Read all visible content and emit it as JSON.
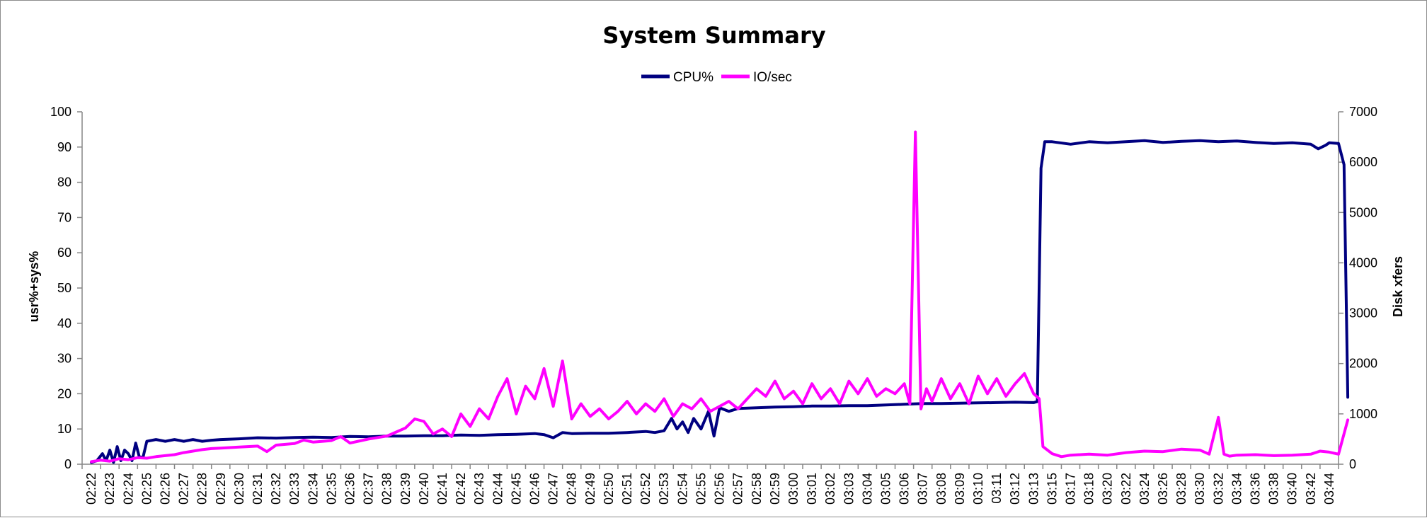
{
  "chart_data": {
    "type": "line",
    "title": "System Summary",
    "legend": {
      "placement": "top-center"
    },
    "grid": false,
    "y_left": {
      "label": "usr%+sys%",
      "range": [
        0,
        100
      ],
      "ticks": [
        "0",
        "10",
        "20",
        "30",
        "40",
        "50",
        "60",
        "70",
        "80",
        "90",
        "100"
      ]
    },
    "y_right": {
      "label": "Disk xfers",
      "range": [
        0,
        7000
      ],
      "ticks": [
        "0",
        "1000",
        "2000",
        "3000",
        "4000",
        "5000",
        "6000",
        "7000"
      ]
    },
    "x_tick_labels": [
      "02:22",
      "02:23",
      "02:24",
      "02:25",
      "02:26",
      "02:27",
      "02:28",
      "02:29",
      "02:30",
      "02:31",
      "02:32",
      "02:33",
      "02:34",
      "02:35",
      "02:36",
      "02:37",
      "02:38",
      "02:39",
      "02:40",
      "02:41",
      "02:42",
      "02:43",
      "02:44",
      "02:45",
      "02:46",
      "02:47",
      "02:48",
      "02:49",
      "02:50",
      "02:51",
      "02:52",
      "02:53",
      "02:54",
      "02:55",
      "02:56",
      "02:57",
      "02:58",
      "02:59",
      "03:00",
      "03:01",
      "03:02",
      "03:03",
      "03:04",
      "03:05",
      "03:06",
      "03:07",
      "03:08",
      "03:09",
      "03:10",
      "03:11",
      "03:12",
      "03:13",
      "03:15",
      "03:17",
      "03:18",
      "03:20",
      "03:22",
      "03:24",
      "03:26",
      "03:28",
      "03:30",
      "03:32",
      "03:34",
      "03:36",
      "03:38",
      "03:40",
      "03:42",
      "03:44"
    ],
    "series": [
      {
        "name": "CPU%",
        "axis": "left",
        "color": "#000080",
        "points": [
          [
            0,
            0.5
          ],
          [
            0.3,
            1
          ],
          [
            0.6,
            3
          ],
          [
            0.8,
            1
          ],
          [
            1.0,
            4
          ],
          [
            1.2,
            0.5
          ],
          [
            1.4,
            5
          ],
          [
            1.6,
            1
          ],
          [
            1.8,
            4
          ],
          [
            2.0,
            3
          ],
          [
            2.2,
            1
          ],
          [
            2.4,
            6
          ],
          [
            2.6,
            2
          ],
          [
            2.8,
            2
          ],
          [
            3.0,
            6.5
          ],
          [
            3.5,
            7
          ],
          [
            4,
            6.5
          ],
          [
            4.5,
            7
          ],
          [
            5,
            6.5
          ],
          [
            5.5,
            7
          ],
          [
            6,
            6.5
          ],
          [
            6.5,
            6.8
          ],
          [
            7,
            7
          ],
          [
            8,
            7.2
          ],
          [
            9,
            7.5
          ],
          [
            10,
            7.4
          ],
          [
            11,
            7.6
          ],
          [
            12,
            7.7
          ],
          [
            13,
            7.6
          ],
          [
            14,
            7.9
          ],
          [
            15,
            7.8
          ],
          [
            16,
            8
          ],
          [
            17,
            8
          ],
          [
            18,
            8.1
          ],
          [
            19,
            8.1
          ],
          [
            20,
            8.3
          ],
          [
            21,
            8.2
          ],
          [
            22,
            8.4
          ],
          [
            23,
            8.5
          ],
          [
            24,
            8.7
          ],
          [
            24.5,
            8.4
          ],
          [
            25,
            7.5
          ],
          [
            25.5,
            9
          ],
          [
            26,
            8.7
          ],
          [
            27,
            8.8
          ],
          [
            28,
            8.8
          ],
          [
            29,
            9
          ],
          [
            30,
            9.3
          ],
          [
            30.5,
            9
          ],
          [
            31,
            9.5
          ],
          [
            31.4,
            13
          ],
          [
            31.7,
            10
          ],
          [
            32,
            12
          ],
          [
            32.3,
            9
          ],
          [
            32.6,
            13
          ],
          [
            33,
            10
          ],
          [
            33.4,
            15
          ],
          [
            33.7,
            8
          ],
          [
            34,
            16
          ],
          [
            34.5,
            15
          ],
          [
            35,
            15.8
          ],
          [
            36,
            16
          ],
          [
            37,
            16.2
          ],
          [
            38,
            16.3
          ],
          [
            39,
            16.5
          ],
          [
            40,
            16.5
          ],
          [
            41,
            16.6
          ],
          [
            42,
            16.6
          ],
          [
            43,
            16.8
          ],
          [
            44,
            17
          ],
          [
            45,
            17.2
          ],
          [
            46,
            17.2
          ],
          [
            47,
            17.3
          ],
          [
            48,
            17.4
          ],
          [
            49,
            17.5
          ],
          [
            50,
            17.6
          ],
          [
            51,
            17.5
          ],
          [
            51.2,
            17.8
          ],
          [
            51.4,
            84
          ],
          [
            51.6,
            91.5
          ],
          [
            52,
            91.5
          ],
          [
            53,
            90.8
          ],
          [
            54,
            91.5
          ],
          [
            55,
            91.2
          ],
          [
            56,
            91.5
          ],
          [
            57,
            91.8
          ],
          [
            58,
            91.3
          ],
          [
            59,
            91.6
          ],
          [
            60,
            91.8
          ],
          [
            61,
            91.5
          ],
          [
            62,
            91.7
          ],
          [
            63,
            91.3
          ],
          [
            64,
            91
          ],
          [
            65,
            91.2
          ],
          [
            66,
            90.8
          ],
          [
            66.4,
            89.5
          ],
          [
            66.8,
            90.5
          ],
          [
            67,
            91.2
          ],
          [
            67.5,
            91
          ],
          [
            67.8,
            85
          ],
          [
            68,
            19
          ]
        ]
      },
      {
        "name": "IO/sec",
        "axis": "right",
        "color": "#ff00ff",
        "points": [
          [
            0,
            50
          ],
          [
            0.5,
            80
          ],
          [
            1,
            60
          ],
          [
            1.5,
            110
          ],
          [
            2,
            90
          ],
          [
            2.5,
            130
          ],
          [
            3,
            120
          ],
          [
            3.5,
            150
          ],
          [
            4,
            170
          ],
          [
            4.5,
            190
          ],
          [
            5,
            230
          ],
          [
            5.5,
            260
          ],
          [
            6,
            290
          ],
          [
            6.5,
            310
          ],
          [
            7,
            320
          ],
          [
            8,
            340
          ],
          [
            9,
            360
          ],
          [
            9.5,
            250
          ],
          [
            10,
            380
          ],
          [
            11,
            410
          ],
          [
            11.5,
            480
          ],
          [
            12,
            440
          ],
          [
            13,
            470
          ],
          [
            13.5,
            550
          ],
          [
            14,
            420
          ],
          [
            15,
            500
          ],
          [
            15.5,
            530
          ],
          [
            16,
            560
          ],
          [
            16.5,
            640
          ],
          [
            17,
            720
          ],
          [
            17.5,
            900
          ],
          [
            18,
            850
          ],
          [
            18.5,
            600
          ],
          [
            19,
            700
          ],
          [
            19.5,
            550
          ],
          [
            20,
            1000
          ],
          [
            20.5,
            750
          ],
          [
            21,
            1100
          ],
          [
            21.5,
            900
          ],
          [
            22,
            1350
          ],
          [
            22.5,
            1700
          ],
          [
            23,
            1000
          ],
          [
            23.5,
            1550
          ],
          [
            24,
            1300
          ],
          [
            24.5,
            1900
          ],
          [
            25,
            1150
          ],
          [
            25.5,
            2050
          ],
          [
            26,
            900
          ],
          [
            26.5,
            1200
          ],
          [
            27,
            950
          ],
          [
            27.5,
            1100
          ],
          [
            28,
            900
          ],
          [
            28.5,
            1050
          ],
          [
            29,
            1250
          ],
          [
            29.5,
            1000
          ],
          [
            30,
            1200
          ],
          [
            30.5,
            1050
          ],
          [
            31,
            1300
          ],
          [
            31.5,
            950
          ],
          [
            32,
            1200
          ],
          [
            32.5,
            1100
          ],
          [
            33,
            1300
          ],
          [
            33.5,
            1050
          ],
          [
            34,
            1150
          ],
          [
            34.5,
            1250
          ],
          [
            35,
            1100
          ],
          [
            35.5,
            1300
          ],
          [
            36,
            1500
          ],
          [
            36.5,
            1350
          ],
          [
            37,
            1650
          ],
          [
            37.5,
            1300
          ],
          [
            38,
            1450
          ],
          [
            38.5,
            1200
          ],
          [
            39,
            1600
          ],
          [
            39.5,
            1300
          ],
          [
            40,
            1500
          ],
          [
            40.5,
            1200
          ],
          [
            41,
            1650
          ],
          [
            41.5,
            1400
          ],
          [
            42,
            1700
          ],
          [
            42.5,
            1350
          ],
          [
            43,
            1500
          ],
          [
            43.5,
            1400
          ],
          [
            44,
            1600
          ],
          [
            44.3,
            1200
          ],
          [
            44.6,
            6600
          ],
          [
            44.9,
            1100
          ],
          [
            45.2,
            1500
          ],
          [
            45.5,
            1250
          ],
          [
            46,
            1700
          ],
          [
            46.5,
            1300
          ],
          [
            47,
            1600
          ],
          [
            47.5,
            1200
          ],
          [
            48,
            1750
          ],
          [
            48.5,
            1400
          ],
          [
            49,
            1700
          ],
          [
            49.5,
            1350
          ],
          [
            50,
            1600
          ],
          [
            50.5,
            1800
          ],
          [
            51,
            1400
          ],
          [
            51.3,
            1300
          ],
          [
            51.5,
            350
          ],
          [
            52,
            210
          ],
          [
            52.5,
            150
          ],
          [
            53,
            180
          ],
          [
            54,
            200
          ],
          [
            55,
            180
          ],
          [
            56,
            230
          ],
          [
            57,
            260
          ],
          [
            58,
            250
          ],
          [
            59,
            300
          ],
          [
            60,
            280
          ],
          [
            60.5,
            200
          ],
          [
            61,
            930
          ],
          [
            61.3,
            200
          ],
          [
            61.6,
            160
          ],
          [
            62,
            180
          ],
          [
            63,
            190
          ],
          [
            64,
            170
          ],
          [
            65,
            180
          ],
          [
            66,
            200
          ],
          [
            66.5,
            260
          ],
          [
            67,
            240
          ],
          [
            67.5,
            200
          ],
          [
            68,
            880
          ]
        ]
      }
    ]
  }
}
